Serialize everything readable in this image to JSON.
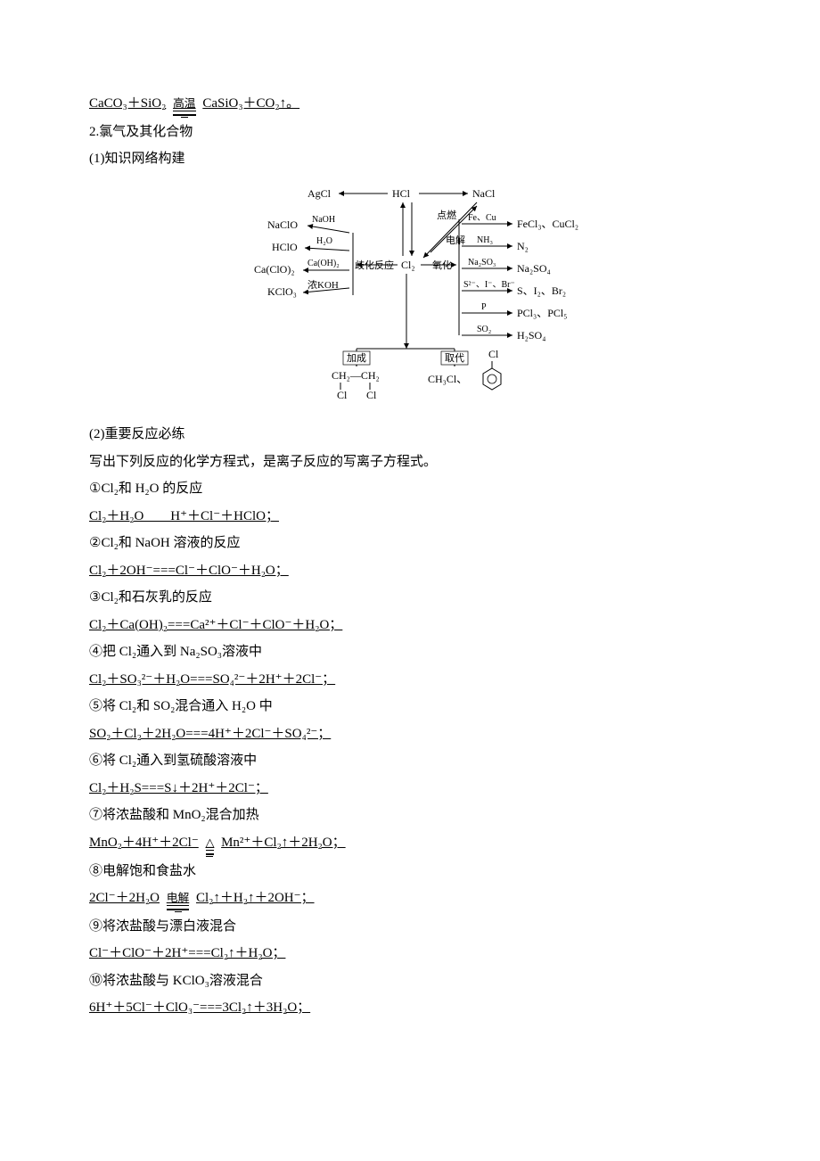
{
  "top_equation": {
    "lhs": "CaCO₃＋SiO₂",
    "cond": "高温",
    "rhs": "CaSiO₃＋CO₂↑。"
  },
  "heading2": "2.氯气及其化合物",
  "heading2_1": "(1)知识网络构建",
  "diagram": {
    "center": "Cl₂",
    "top": {
      "left": "AgCl",
      "mid": "HCl",
      "right": "NaCl"
    },
    "left_branches": [
      {
        "product": "NaClO",
        "label": "NaOH"
      },
      {
        "product": "HClO",
        "label": "H₂O"
      },
      {
        "product": "Ca(ClO)₂",
        "label": "Ca(OH)₂"
      },
      {
        "product": "KClO₃",
        "label": "浓KOH"
      }
    ],
    "left_group_label": "歧化反应",
    "right_top_labels": {
      "a": "点燃",
      "b": "电解"
    },
    "right_group_label": "氧化",
    "right_branches": [
      {
        "label": "Fe、Cu",
        "product": "FeCl₃、CuCl₂"
      },
      {
        "label": "NH₃",
        "product": "N₂"
      },
      {
        "label": "Na₂SO₃",
        "product": "Na₂SO₄"
      },
      {
        "label": "S²⁻、I⁻、Br⁻",
        "product": "S、I₂、Br₂"
      },
      {
        "label": "P",
        "product": "PCl₃、PCl₅"
      },
      {
        "label": "SO₂",
        "product": "H₂SO₄"
      }
    ],
    "bottom": {
      "left": {
        "label": "加成",
        "line1": "CH₂—CH₂",
        "line2a": "Cl",
        "line2b": "Cl"
      },
      "right": {
        "label": "取代",
        "p1": "CH₃Cl、",
        "p2": "Cl"
      }
    }
  },
  "heading2_2": "(2)重要反应必练",
  "intro": "写出下列反应的化学方程式，是离子反应的写离子方程式。",
  "items": [
    {
      "n": "①",
      "title": "Cl₂和 H₂O 的反应",
      "eq": "Cl₂＋H₂O　　H⁺＋Cl⁻＋HClO；"
    },
    {
      "n": "②",
      "title": "Cl₂和 NaOH 溶液的反应",
      "eq": "Cl₂＋2OH⁻===Cl⁻＋ClO⁻＋H₂O；"
    },
    {
      "n": "③",
      "title": "Cl₂和石灰乳的反应",
      "eq": "Cl₂＋Ca(OH)₂===Ca²⁺＋Cl⁻＋ClO⁻＋H₂O；"
    },
    {
      "n": "④",
      "title": "把 Cl₂通入到 Na₂SO₃溶液中",
      "eq": "Cl₂＋SO₃²⁻＋H₂O===SO₄²⁻＋2H⁺＋2Cl⁻；"
    },
    {
      "n": "⑤",
      "title": "将 Cl₂和 SO₂混合通入 H₂O 中",
      "eq": "SO₂＋Cl₂＋2H₂O===4H⁺＋2Cl⁻＋SO₄²⁻；"
    },
    {
      "n": "⑥",
      "title": "将 Cl₂通入到氢硫酸溶液中",
      "eq": "Cl₂＋H₂S===S↓＋2H⁺＋2Cl⁻；"
    },
    {
      "n": "⑦",
      "title": "将浓盐酸和 MnO₂混合加热",
      "eq_lhs": "MnO₂＋4H⁺＋2Cl⁻",
      "eq_cond": "△",
      "eq_rhs": "Mn²⁺＋Cl₂↑＋2H₂O；"
    },
    {
      "n": "⑧",
      "title": "电解饱和食盐水",
      "eq_lhs": "2Cl⁻＋2H₂O",
      "eq_cond": "电解",
      "eq_rhs": "Cl₂↑＋H₂↑＋2OH⁻；"
    },
    {
      "n": "⑨",
      "title": "将浓盐酸与漂白液混合",
      "eq": "Cl⁻＋ClO⁻＋2H⁺===Cl₂↑＋H₂O；"
    },
    {
      "n": "⑩",
      "title": "将浓盐酸与 KClO₃溶液混合",
      "eq": "6H⁺＋5Cl⁻＋ClO₃⁻===3Cl₂↑＋3H₂O；"
    }
  ]
}
